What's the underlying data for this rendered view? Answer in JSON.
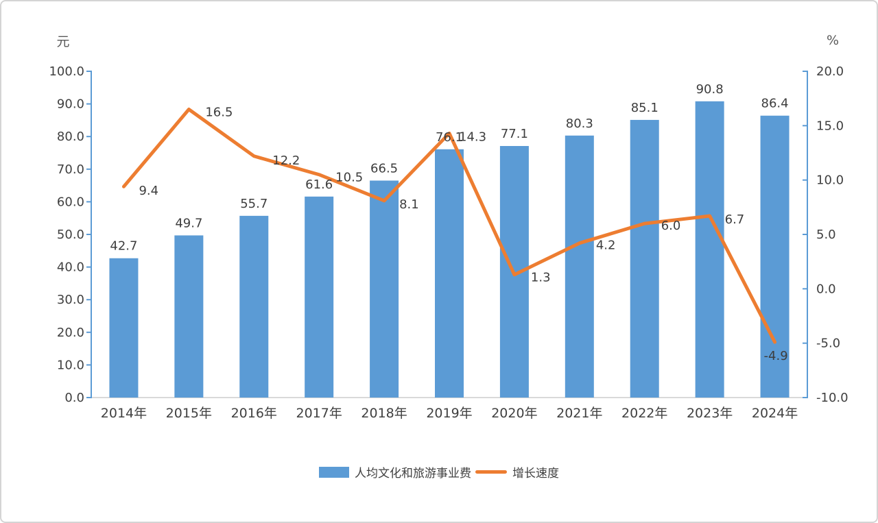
{
  "chart_data": {
    "type": "bar+line",
    "categories": [
      "2014年",
      "2015年",
      "2016年",
      "2017年",
      "2018年",
      "2019年",
      "2020年",
      "2021年",
      "2022年",
      "2023年",
      "2024年"
    ],
    "series": [
      {
        "name": "人均文化和旅游事业费",
        "type": "bar",
        "axis": "left",
        "unit": "元",
        "color": "#5B9BD5",
        "values": [
          42.7,
          49.7,
          55.7,
          61.6,
          66.5,
          76.1,
          77.1,
          80.3,
          85.1,
          90.8,
          86.4
        ],
        "labels": [
          "42.7",
          "49.7",
          "55.7",
          "61.6",
          "66.5",
          "76.1",
          "77.1",
          "80.3",
          "85.1",
          "90.8",
          "86.4"
        ]
      },
      {
        "name": "增长速度",
        "type": "line",
        "axis": "right",
        "unit": "%",
        "color": "#ED7D31",
        "values": [
          9.4,
          16.5,
          12.2,
          10.5,
          8.1,
          14.3,
          1.3,
          4.2,
          6.0,
          6.7,
          -4.9
        ],
        "labels": [
          "9.4",
          "16.5",
          "12.2",
          "10.5",
          "8.1",
          "14.3",
          "1.3",
          "4.2",
          "6.0",
          "6.7",
          "-4.9"
        ]
      }
    ],
    "left_axis": {
      "label": "元",
      "min": 0,
      "max": 100,
      "ticks": [
        "100.0",
        "90.0",
        "80.0",
        "70.0",
        "60.0",
        "50.0",
        "40.0",
        "30.0",
        "20.0",
        "10.0",
        "0.0"
      ],
      "color": "#5B9BD5"
    },
    "right_axis": {
      "label": "%",
      "min": -10,
      "max": 20,
      "ticks": [
        "20.0",
        "15.0",
        "10.0",
        "5.0",
        "0.0",
        "-5.0",
        "-10.0"
      ],
      "color": "#5B9BD5"
    },
    "baseline_color": "#D9D9D9",
    "grid": false,
    "legend_position": "bottom",
    "title": ""
  }
}
